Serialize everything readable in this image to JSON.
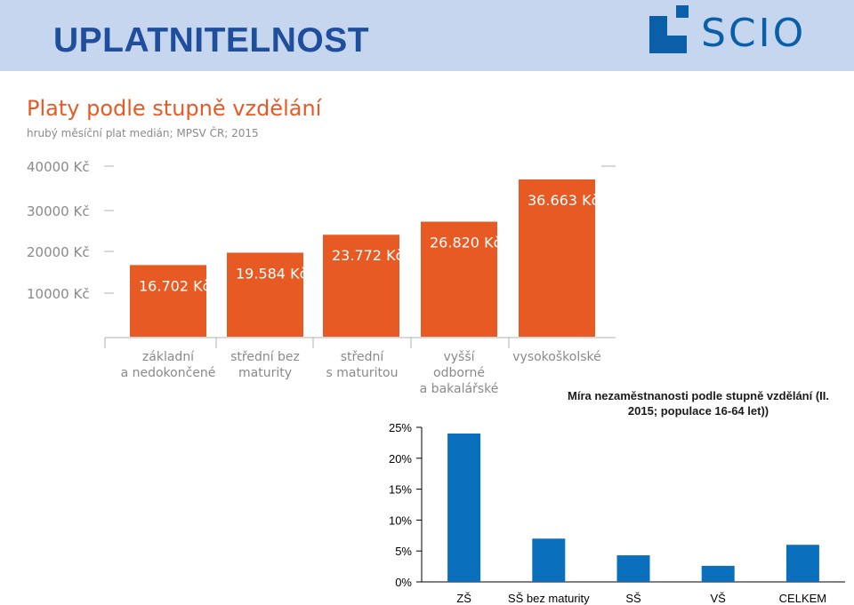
{
  "header": {
    "title": "UPLATNITELNOST",
    "logo_text": "SCIO",
    "band_color": "#c5d6ee",
    "title_color": "#1f4e9c"
  },
  "chart_data": [
    {
      "type": "bar",
      "title": "Platy podle stupně vzdělání",
      "subtitle": "hrubý měsíční plat medián; MPSV ČR; 2015",
      "categories": [
        [
          "základní",
          "a nedokončené"
        ],
        [
          "střední bez",
          "maturity"
        ],
        [
          "střední",
          "s maturitou"
        ],
        [
          "vyšší",
          "odborné",
          "a bakalářské"
        ],
        [
          "vysokoškolské"
        ]
      ],
      "values": [
        16702,
        19584,
        23772,
        26820,
        36663
      ],
      "value_labels": [
        "16.702 Kč",
        "19.584 Kč",
        "23.772 Kč",
        "26.820 Kč",
        "36.663 Kč"
      ],
      "y_tick_labels": [
        "40000 Kč",
        "30000 Kč",
        "20000 Kč",
        "10000 Kč"
      ],
      "y_ticks": [
        40000,
        30000,
        20000,
        10000
      ],
      "ylim": [
        0,
        40000
      ],
      "grid": false,
      "color": "#e85a24",
      "label_color": "#ffffff",
      "tick_color": "#8a8a8a"
    },
    {
      "type": "bar",
      "title": "Míra nezaměstnanosti podle stupně vzdělání (II. 2015; populace 16-64 let))",
      "categories": [
        "ZŠ",
        "SŠ bez maturity",
        "SŠ",
        "VŠ",
        "CELKEM"
      ],
      "values": [
        24.0,
        7.0,
        4.3,
        2.6,
        6.0
      ],
      "y_ticks": [
        0,
        5,
        10,
        15,
        20,
        25
      ],
      "y_tick_labels": [
        "0%",
        "5%",
        "10%",
        "15%",
        "20%",
        "25%"
      ],
      "ylim": [
        0,
        25
      ],
      "grid": false,
      "color": "#0a6fbd"
    }
  ]
}
